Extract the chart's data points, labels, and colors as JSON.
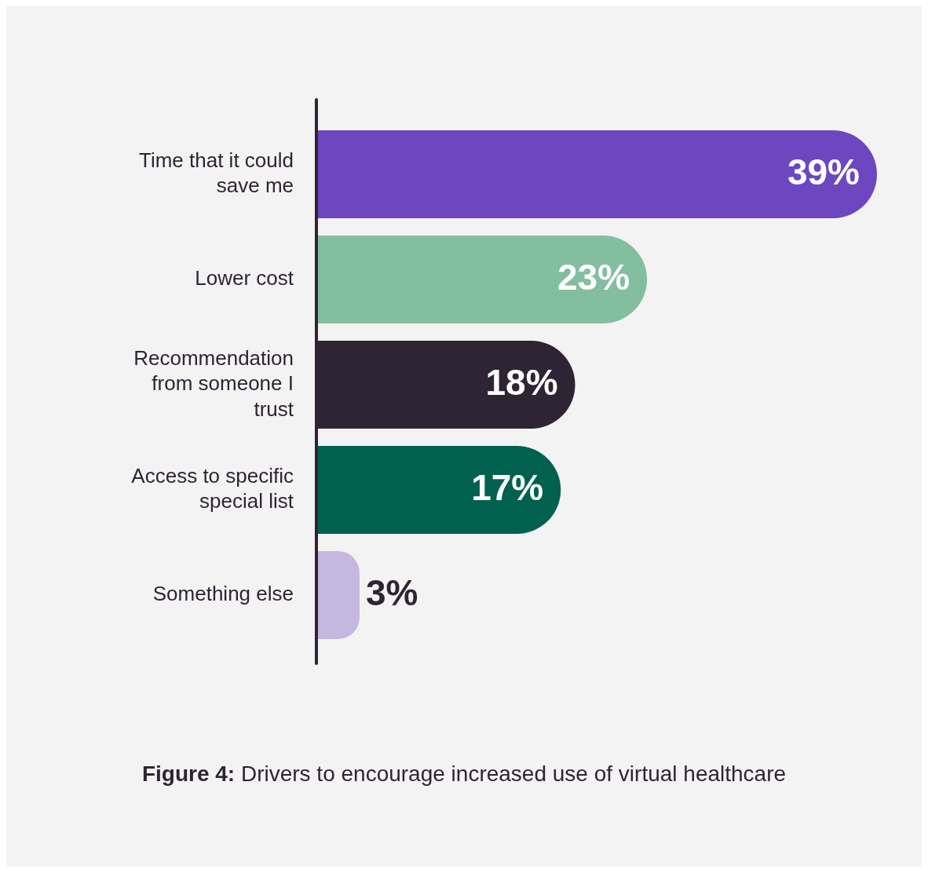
{
  "chart_data": {
    "type": "bar",
    "orientation": "horizontal",
    "title": "Figure 4: Drivers to encourage increased use of virtual healthcare",
    "categories": [
      "Time that it could save me",
      "Lower cost",
      "Recommendation from someone I trust",
      "Access to specific special list",
      "Something else"
    ],
    "values": [
      39,
      23,
      18,
      17,
      3
    ],
    "value_labels": [
      "39%",
      "23%",
      "18%",
      "17%",
      "3%"
    ],
    "colors": [
      "#6c47c0",
      "#83bea0",
      "#2f2433",
      "#00614f",
      "#c4b8e0"
    ],
    "legend": false,
    "grid": false
  }
}
